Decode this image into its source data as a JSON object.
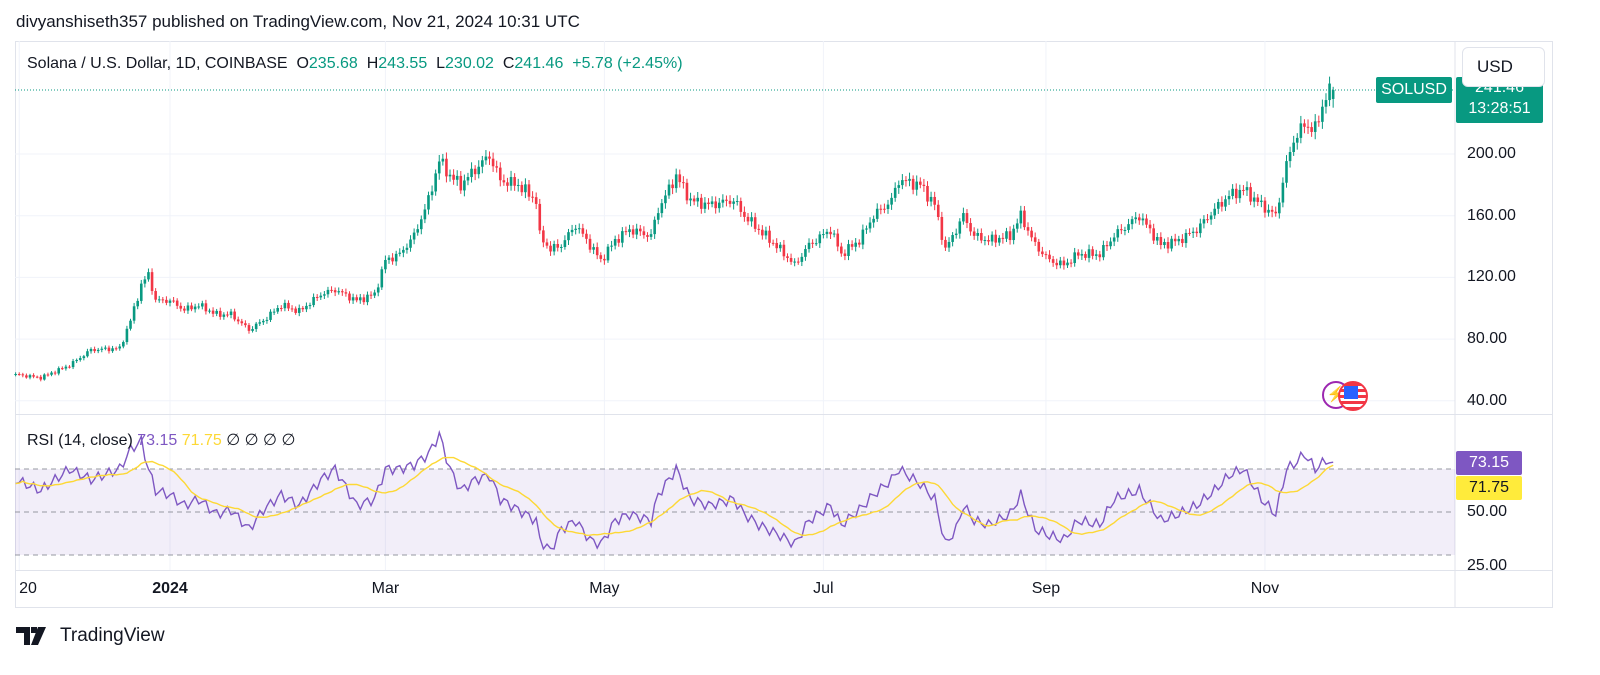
{
  "publisher_line": "divyanshiseth357 published on TradingView.com, Nov 21, 2024 10:31 UTC",
  "legend": {
    "symbol": "Solana / U.S. Dollar, 1D, COINBASE",
    "o_label": "O",
    "open": "235.68",
    "h_label": "H",
    "high": "243.55",
    "l_label": "L",
    "low": "230.02",
    "c_label": "C",
    "close": "241.46",
    "change": "+5.78 (+2.45%)"
  },
  "currency_button": "USD",
  "symbol_badge": "SOLUSD",
  "last_price": "241.46",
  "countdown": "13:28:51",
  "rsi_legend": {
    "name": "RSI (14, close)",
    "rsi": "73.15",
    "ma": "71.75",
    "na": [
      "∅",
      "∅",
      "∅",
      "∅"
    ]
  },
  "rsi_badges": {
    "rsi": "73.15",
    "ma": "71.75"
  },
  "footer_brand": "TradingView",
  "colors": {
    "up": "#089981",
    "down": "#f23645",
    "rsi": "#7e57c2",
    "rsi_ma": "#fdd835",
    "band": "#7e57c2"
  },
  "icons": [
    "lightning-icon",
    "us-flag-icon",
    "tradingview-logo-icon"
  ],
  "chart_data": [
    {
      "type": "candlestick",
      "title": "Solana / U.S. Dollar, 1D, COINBASE",
      "y_ticks": [
        "200.00",
        "160.00",
        "120.00",
        "80.00",
        "40.00"
      ],
      "ylim": [
        35,
        265
      ],
      "x_ticks": [
        {
          "label": "20",
          "date": "2023-11-20"
        },
        {
          "label": "2024",
          "date": "2024-01-01",
          "bold": true
        },
        {
          "label": "Mar",
          "date": "2024-03-01"
        },
        {
          "label": "May",
          "date": "2024-05-01"
        },
        {
          "label": "Jul",
          "date": "2024-07-01"
        },
        {
          "label": "Sep",
          "date": "2024-09-01"
        },
        {
          "label": "Nov",
          "date": "2024-11-01"
        }
      ],
      "xlim": [
        "2023-11-16",
        "2025-01-15"
      ],
      "grid": true,
      "approx_closes": [
        [
          "2023-11-19",
          57
        ],
        [
          "2023-11-26",
          55
        ],
        [
          "2023-12-04",
          63
        ],
        [
          "2023-12-10",
          73
        ],
        [
          "2023-12-18",
          74
        ],
        [
          "2023-12-21",
          92
        ],
        [
          "2023-12-24",
          115
        ],
        [
          "2023-12-26",
          122
        ],
        [
          "2023-12-28",
          105
        ],
        [
          "2024-01-01",
          105
        ],
        [
          "2024-01-05",
          99
        ],
        [
          "2024-01-09",
          102
        ],
        [
          "2024-01-14",
          96
        ],
        [
          "2024-01-18",
          96
        ],
        [
          "2024-01-23",
          86
        ],
        [
          "2024-01-27",
          92
        ],
        [
          "2024-02-01",
          102
        ],
        [
          "2024-02-06",
          98
        ],
        [
          "2024-02-12",
          109
        ],
        [
          "2024-02-16",
          112
        ],
        [
          "2024-02-22",
          105
        ],
        [
          "2024-02-27",
          109
        ],
        [
          "2024-03-01",
          131
        ],
        [
          "2024-03-05",
          135
        ],
        [
          "2024-03-09",
          147
        ],
        [
          "2024-03-13",
          170
        ],
        [
          "2024-03-16",
          196
        ],
        [
          "2024-03-19",
          186
        ],
        [
          "2024-03-22",
          180
        ],
        [
          "2024-03-26",
          190
        ],
        [
          "2024-03-30",
          199
        ],
        [
          "2024-04-02",
          183
        ],
        [
          "2024-04-07",
          180
        ],
        [
          "2024-04-12",
          170
        ],
        [
          "2024-04-13",
          147
        ],
        [
          "2024-04-16",
          138
        ],
        [
          "2024-04-19",
          141
        ],
        [
          "2024-04-23",
          154
        ],
        [
          "2024-04-27",
          141
        ],
        [
          "2024-04-30",
          131
        ],
        [
          "2024-05-04",
          144
        ],
        [
          "2024-05-08",
          151
        ],
        [
          "2024-05-14",
          147
        ],
        [
          "2024-05-16",
          164
        ],
        [
          "2024-05-21",
          186
        ],
        [
          "2024-05-25",
          170
        ],
        [
          "2024-05-30",
          167
        ],
        [
          "2024-06-06",
          170
        ],
        [
          "2024-06-09",
          160
        ],
        [
          "2024-06-13",
          151
        ],
        [
          "2024-06-19",
          138
        ],
        [
          "2024-06-23",
          128
        ],
        [
          "2024-06-27",
          141
        ],
        [
          "2024-07-03",
          151
        ],
        [
          "2024-07-06",
          135
        ],
        [
          "2024-07-11",
          144
        ],
        [
          "2024-07-15",
          160
        ],
        [
          "2024-07-20",
          170
        ],
        [
          "2024-07-22",
          183
        ],
        [
          "2024-07-28",
          180
        ],
        [
          "2024-08-01",
          167
        ],
        [
          "2024-08-04",
          138
        ],
        [
          "2024-08-07",
          151
        ],
        [
          "2024-08-09",
          160
        ],
        [
          "2024-08-12",
          147
        ],
        [
          "2024-08-16",
          144
        ],
        [
          "2024-08-22",
          147
        ],
        [
          "2024-08-25",
          160
        ],
        [
          "2024-08-29",
          141
        ],
        [
          "2024-09-02",
          131
        ],
        [
          "2024-09-06",
          128
        ],
        [
          "2024-09-10",
          135
        ],
        [
          "2024-09-16",
          135
        ],
        [
          "2024-09-20",
          147
        ],
        [
          "2024-09-27",
          160
        ],
        [
          "2024-10-03",
          141
        ],
        [
          "2024-10-08",
          144
        ],
        [
          "2024-10-13",
          151
        ],
        [
          "2024-10-18",
          164
        ],
        [
          "2024-10-22",
          173
        ],
        [
          "2024-10-26",
          177
        ],
        [
          "2024-10-31",
          167
        ],
        [
          "2024-11-04",
          160
        ],
        [
          "2024-11-07",
          193
        ],
        [
          "2024-11-09",
          209
        ],
        [
          "2024-11-12",
          219
        ],
        [
          "2024-11-15",
          216
        ],
        [
          "2024-11-18",
          238
        ],
        [
          "2024-11-20",
          241.46
        ]
      ],
      "last_bar": {
        "open": 235.68,
        "high": 243.55,
        "low": 230.02,
        "close": 241.46
      }
    },
    {
      "type": "line",
      "title": "RSI (14, close)",
      "y_ticks": [
        "50.00",
        "25.00"
      ],
      "ylim": [
        24,
        90
      ],
      "levels": [
        70,
        50,
        30
      ],
      "series": [
        {
          "name": "RSI",
          "values": [
            [
              "2023-11-19",
              65
            ],
            [
              "2023-11-26",
              60
            ],
            [
              "2023-12-04",
              70
            ],
            [
              "2023-12-10",
              65
            ],
            [
              "2023-12-18",
              70
            ],
            [
              "2023-12-21",
              79
            ],
            [
              "2023-12-24",
              83
            ],
            [
              "2023-12-26",
              70
            ],
            [
              "2023-12-28",
              60
            ],
            [
              "2024-01-01",
              58
            ],
            [
              "2024-01-05",
              53
            ],
            [
              "2024-01-09",
              56
            ],
            [
              "2024-01-14",
              49
            ],
            [
              "2024-01-18",
              51
            ],
            [
              "2024-01-23",
              42
            ],
            [
              "2024-01-27",
              51
            ],
            [
              "2024-02-01",
              58
            ],
            [
              "2024-02-06",
              53
            ],
            [
              "2024-02-12",
              65
            ],
            [
              "2024-02-16",
              70
            ],
            [
              "2024-02-22",
              53
            ],
            [
              "2024-02-27",
              56
            ],
            [
              "2024-03-01",
              70
            ],
            [
              "2024-03-05",
              70
            ],
            [
              "2024-03-09",
              72
            ],
            [
              "2024-03-13",
              77
            ],
            [
              "2024-03-16",
              86
            ],
            [
              "2024-03-19",
              70
            ],
            [
              "2024-03-22",
              60
            ],
            [
              "2024-03-26",
              65
            ],
            [
              "2024-03-30",
              67
            ],
            [
              "2024-04-02",
              56
            ],
            [
              "2024-04-07",
              51
            ],
            [
              "2024-04-12",
              46
            ],
            [
              "2024-04-13",
              37
            ],
            [
              "2024-04-16",
              32
            ],
            [
              "2024-04-19",
              42
            ],
            [
              "2024-04-23",
              46
            ],
            [
              "2024-04-27",
              37
            ],
            [
              "2024-04-30",
              35
            ],
            [
              "2024-05-04",
              46
            ],
            [
              "2024-05-08",
              49
            ],
            [
              "2024-05-14",
              46
            ],
            [
              "2024-05-16",
              58
            ],
            [
              "2024-05-21",
              70
            ],
            [
              "2024-05-25",
              56
            ],
            [
              "2024-05-30",
              53
            ],
            [
              "2024-06-06",
              56
            ],
            [
              "2024-06-09",
              49
            ],
            [
              "2024-06-13",
              44
            ],
            [
              "2024-06-19",
              39
            ],
            [
              "2024-06-23",
              35
            ],
            [
              "2024-06-27",
              46
            ],
            [
              "2024-07-03",
              53
            ],
            [
              "2024-07-06",
              44
            ],
            [
              "2024-07-11",
              51
            ],
            [
              "2024-07-15",
              58
            ],
            [
              "2024-07-20",
              65
            ],
            [
              "2024-07-22",
              70
            ],
            [
              "2024-07-28",
              63
            ],
            [
              "2024-08-01",
              56
            ],
            [
              "2024-08-04",
              35
            ],
            [
              "2024-08-07",
              42
            ],
            [
              "2024-08-09",
              53
            ],
            [
              "2024-08-12",
              46
            ],
            [
              "2024-08-16",
              44
            ],
            [
              "2024-08-22",
              49
            ],
            [
              "2024-08-25",
              58
            ],
            [
              "2024-08-29",
              42
            ],
            [
              "2024-09-02",
              39
            ],
            [
              "2024-09-06",
              37
            ],
            [
              "2024-09-10",
              46
            ],
            [
              "2024-09-16",
              44
            ],
            [
              "2024-09-20",
              56
            ],
            [
              "2024-09-27",
              60
            ],
            [
              "2024-10-03",
              46
            ],
            [
              "2024-10-08",
              49
            ],
            [
              "2024-10-13",
              53
            ],
            [
              "2024-10-18",
              60
            ],
            [
              "2024-10-22",
              67
            ],
            [
              "2024-10-26",
              70
            ],
            [
              "2024-10-31",
              56
            ],
            [
              "2024-11-04",
              49
            ],
            [
              "2024-11-07",
              70
            ],
            [
              "2024-11-09",
              72
            ],
            [
              "2024-11-12",
              77
            ],
            [
              "2024-11-15",
              70
            ],
            [
              "2024-11-18",
              74
            ],
            [
              "2024-11-20",
              73.15
            ]
          ]
        },
        {
          "name": "RSI-based MA",
          "last": 71.75
        }
      ]
    }
  ]
}
